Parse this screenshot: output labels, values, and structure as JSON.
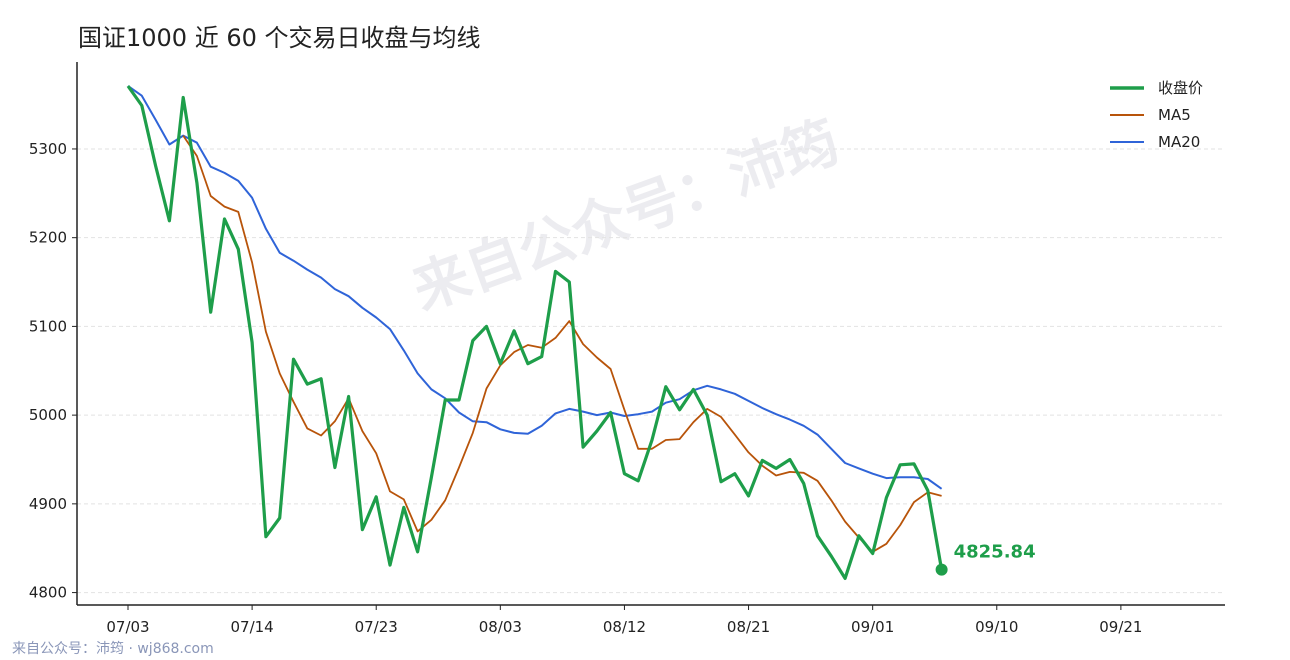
{
  "title": "国证1000 近 60 个交易日收盘与均线",
  "watermark": "来自公众号：沛筠",
  "footer": "来自公众号：沛筠 · wj868.com",
  "colors": {
    "close": "#1e9e4a",
    "ma5": "#b8540a",
    "ma20": "#2f64d8",
    "grid": "#e2e2e2",
    "axis": "#222222"
  },
  "chart_data": {
    "type": "line",
    "title": "国证1000 近 60 个交易日收盘与均线",
    "xlabel": "",
    "ylabel": "",
    "ylim": [
      4786,
      5398
    ],
    "grid": "horizontal dashed",
    "legend_position": "top-right",
    "yticks": [
      4800,
      4900,
      5000,
      5100,
      5200,
      5300
    ],
    "xticks": [
      {
        "index": 0,
        "label": "07/03"
      },
      {
        "index": 9,
        "label": "07/14"
      },
      {
        "index": 18,
        "label": "07/23"
      },
      {
        "index": 27,
        "label": "08/03"
      },
      {
        "index": 36,
        "label": "08/12"
      },
      {
        "index": 45,
        "label": "08/21"
      },
      {
        "index": 54,
        "label": "09/01"
      },
      {
        "index": 63,
        "label": "09/10"
      },
      {
        "index": 72,
        "label": "09/21"
      }
    ],
    "x_count": 76,
    "series": [
      {
        "name": "收盘价",
        "key": "close",
        "points": [
          [
            0,
            5371
          ],
          [
            1,
            5349
          ],
          [
            2,
            5281
          ],
          [
            3,
            5219
          ],
          [
            4,
            5358
          ],
          [
            5,
            5262
          ],
          [
            6,
            5116
          ],
          [
            7,
            5221
          ],
          [
            8,
            5187
          ],
          [
            9,
            5082
          ],
          [
            10,
            4863
          ],
          [
            11,
            4884
          ],
          [
            12,
            5063
          ],
          [
            13,
            5035
          ],
          [
            14,
            5041
          ],
          [
            15,
            4941
          ],
          [
            16,
            5021
          ],
          [
            17,
            4871
          ],
          [
            18,
            4908
          ],
          [
            19,
            4831
          ],
          [
            20,
            4896
          ],
          [
            21,
            4846
          ],
          [
            22,
            4930
          ],
          [
            23,
            5017
          ],
          [
            24,
            5017
          ],
          [
            25,
            5084
          ],
          [
            26,
            5100
          ],
          [
            27,
            5058
          ],
          [
            28,
            5095
          ],
          [
            29,
            5058
          ],
          [
            30,
            5066
          ],
          [
            31,
            5162
          ],
          [
            32,
            5150
          ],
          [
            33,
            4964
          ],
          [
            34,
            4982
          ],
          [
            35,
            5003
          ],
          [
            36,
            4934
          ],
          [
            37,
            4926
          ],
          [
            38,
            4972
          ],
          [
            39,
            5032
          ],
          [
            40,
            5006
          ],
          [
            41,
            5029
          ],
          [
            42,
            5000
          ],
          [
            43,
            4925
          ],
          [
            44,
            4934
          ],
          [
            45,
            4909
          ],
          [
            46,
            4949
          ],
          [
            47,
            4940
          ],
          [
            48,
            4950
          ],
          [
            49,
            4923
          ],
          [
            50,
            4864
          ],
          [
            51,
            4841
          ],
          [
            52,
            4816
          ],
          [
            53,
            4864
          ],
          [
            54,
            4844
          ],
          [
            55,
            4907
          ],
          [
            56,
            4944
          ],
          [
            57,
            4945
          ],
          [
            58,
            4915
          ],
          [
            59,
            4825.84
          ]
        ]
      },
      {
        "name": "MA5",
        "key": "ma5",
        "points": [
          [
            4,
            5315
          ],
          [
            5,
            5292
          ],
          [
            6,
            5247
          ],
          [
            7,
            5235
          ],
          [
            8,
            5229
          ],
          [
            9,
            5172
          ],
          [
            10,
            5094
          ],
          [
            11,
            5047
          ],
          [
            12,
            5015
          ],
          [
            13,
            4985
          ],
          [
            14,
            4977
          ],
          [
            15,
            4993
          ],
          [
            16,
            5019
          ],
          [
            17,
            4982
          ],
          [
            18,
            4957
          ],
          [
            19,
            4914
          ],
          [
            20,
            4905
          ],
          [
            21,
            4869
          ],
          [
            22,
            4882
          ],
          [
            23,
            4904
          ],
          [
            24,
            4941
          ],
          [
            25,
            4980
          ],
          [
            26,
            5030
          ],
          [
            27,
            5056
          ],
          [
            28,
            5071
          ],
          [
            29,
            5079
          ],
          [
            30,
            5076
          ],
          [
            31,
            5087
          ],
          [
            32,
            5106
          ],
          [
            33,
            5080
          ],
          [
            34,
            5065
          ],
          [
            35,
            5052
          ],
          [
            36,
            5006
          ],
          [
            37,
            4962
          ],
          [
            38,
            4962
          ],
          [
            39,
            4972
          ],
          [
            40,
            4973
          ],
          [
            41,
            4992
          ],
          [
            42,
            5007
          ],
          [
            43,
            4998
          ],
          [
            44,
            4978
          ],
          [
            45,
            4958
          ],
          [
            46,
            4943
          ],
          [
            47,
            4932
          ],
          [
            48,
            4936
          ],
          [
            49,
            4935
          ],
          [
            50,
            4926
          ],
          [
            51,
            4904
          ],
          [
            52,
            4880
          ],
          [
            53,
            4862
          ],
          [
            54,
            4846
          ],
          [
            55,
            4855
          ],
          [
            56,
            4876
          ],
          [
            57,
            4902
          ],
          [
            58,
            4913
          ],
          [
            59,
            4909
          ]
        ]
      },
      {
        "name": "MA20",
        "key": "ma20",
        "points": [
          [
            0,
            5371
          ],
          [
            1,
            5360
          ],
          [
            2,
            5333
          ],
          [
            3,
            5305
          ],
          [
            4,
            5315
          ],
          [
            5,
            5307
          ],
          [
            6,
            5280
          ],
          [
            7,
            5273
          ],
          [
            8,
            5264
          ],
          [
            9,
            5245
          ],
          [
            10,
            5210
          ],
          [
            11,
            5183
          ],
          [
            12,
            5174
          ],
          [
            13,
            5164
          ],
          [
            14,
            5155
          ],
          [
            15,
            5142
          ],
          [
            16,
            5134
          ],
          [
            17,
            5121
          ],
          [
            18,
            5110
          ],
          [
            19,
            5097
          ],
          [
            20,
            5073
          ],
          [
            21,
            5047
          ],
          [
            22,
            5029
          ],
          [
            23,
            5019
          ],
          [
            24,
            5003
          ],
          [
            25,
            4993
          ],
          [
            26,
            4992
          ],
          [
            27,
            4984
          ],
          [
            28,
            4980
          ],
          [
            29,
            4979
          ],
          [
            30,
            4988
          ],
          [
            31,
            5002
          ],
          [
            32,
            5007
          ],
          [
            33,
            5004
          ],
          [
            34,
            5000
          ],
          [
            35,
            5003
          ],
          [
            36,
            4999
          ],
          [
            37,
            5001
          ],
          [
            38,
            5004
          ],
          [
            39,
            5014
          ],
          [
            40,
            5018
          ],
          [
            41,
            5028
          ],
          [
            42,
            5033
          ],
          [
            43,
            5029
          ],
          [
            44,
            5024
          ],
          [
            45,
            5016
          ],
          [
            46,
            5008
          ],
          [
            47,
            5001
          ],
          [
            48,
            4995
          ],
          [
            49,
            4988
          ],
          [
            50,
            4978
          ],
          [
            51,
            4962
          ],
          [
            52,
            4946
          ],
          [
            53,
            4940
          ],
          [
            54,
            4934
          ],
          [
            55,
            4929
          ],
          [
            56,
            4930
          ],
          [
            57,
            4930
          ],
          [
            58,
            4928
          ],
          [
            59,
            4917
          ]
        ]
      }
    ],
    "last_value_label": "4825.84"
  }
}
